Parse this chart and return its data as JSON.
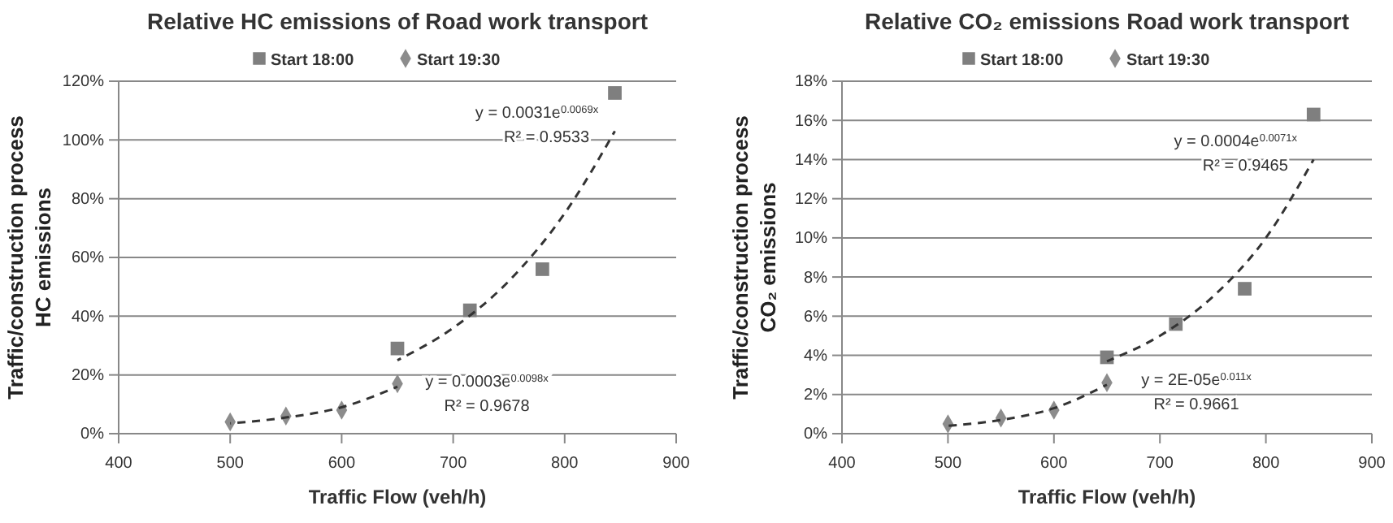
{
  "chart_data": [
    {
      "type": "scatter",
      "title": "Relative HC emissions of Road work transport",
      "xlabel": "Traffic Flow (veh/h)",
      "ylabel": "Traffic/construction  process\nHC emissions",
      "xlim": [
        400,
        900
      ],
      "xticks": [
        400,
        500,
        600,
        700,
        800,
        900
      ],
      "ylim": [
        0,
        120
      ],
      "yticks": [
        {
          "value": 0,
          "label": "0%"
        },
        {
          "value": 20,
          "label": "20%"
        },
        {
          "value": 40,
          "label": "40%"
        },
        {
          "value": 60,
          "label": "60%"
        },
        {
          "value": 80,
          "label": "80%"
        },
        {
          "value": 100,
          "label": "100%"
        },
        {
          "value": 120,
          "label": "120%"
        }
      ],
      "grid": "y",
      "legend": "top",
      "series": [
        {
          "name": "Start 18:00",
          "color": "#7f7f7f",
          "marker": "square",
          "x": [
            650,
            715,
            780,
            845
          ],
          "values": [
            29,
            42,
            56,
            116
          ]
        },
        {
          "name": "Start 19:30",
          "color": "#8c8c8c",
          "marker": "diamond",
          "x": [
            500,
            550,
            600,
            650
          ],
          "values": [
            4,
            6,
            8,
            17
          ]
        },
        {
          "type": "line",
          "color": "#333333",
          "line_style": "dashed",
          "marker": "none",
          "x": [
            650,
            700,
            750,
            800,
            845
          ],
          "values": [
            25,
            36,
            52,
            75,
            103
          ]
        },
        {
          "type": "line",
          "color": "#333333",
          "line_style": "dashed",
          "marker": "none",
          "x": [
            500,
            550,
            600,
            650
          ],
          "values": [
            3.5,
            5.5,
            9,
            16
          ]
        }
      ],
      "annotations": [
        "y = 0.0031e$^{0.0069x}$",
        "R² = 0.9533",
        "y = 0.0003e$^{0.0098x}$",
        "R² = 0.9678"
      ]
    },
    {
      "type": "scatter",
      "title": "Relative CO₂ emissions Road work transport",
      "xlabel": "Traffic Flow (veh/h)",
      "ylabel": "Traffic/construction  process\nCO₂ emissions",
      "xlim": [
        400,
        900
      ],
      "xticks": [
        400,
        500,
        600,
        700,
        800,
        900
      ],
      "ylim": [
        0,
        18
      ],
      "yticks": [
        {
          "value": 0,
          "label": "0%"
        },
        {
          "value": 2,
          "label": "2%"
        },
        {
          "value": 4,
          "label": "4%"
        },
        {
          "value": 6,
          "label": "6%"
        },
        {
          "value": 8,
          "label": "8%"
        },
        {
          "value": 10,
          "label": "10%"
        },
        {
          "value": 12,
          "label": "12%"
        },
        {
          "value": 14,
          "label": "14%"
        },
        {
          "value": 16,
          "label": "16%"
        },
        {
          "value": 18,
          "label": "18%"
        }
      ],
      "grid": "y",
      "legend": "top",
      "series": [
        {
          "name": "Start 18:00",
          "color": "#7f7f7f",
          "marker": "square",
          "x": [
            650,
            715,
            780,
            845
          ],
          "values": [
            3.9,
            5.6,
            7.4,
            16.3
          ]
        },
        {
          "name": "Start 19:30",
          "color": "#8c8c8c",
          "marker": "diamond",
          "x": [
            500,
            550,
            600,
            650
          ],
          "values": [
            0.5,
            0.8,
            1.2,
            2.6
          ]
        },
        {
          "type": "line",
          "color": "#333333",
          "line_style": "dashed",
          "marker": "none",
          "x": [
            650,
            700,
            750,
            800,
            845
          ],
          "values": [
            3.7,
            5,
            7,
            10,
            14
          ]
        },
        {
          "type": "line",
          "color": "#333333",
          "line_style": "dashed",
          "marker": "none",
          "x": [
            500,
            550,
            600,
            650
          ],
          "values": [
            0.4,
            0.7,
            1.3,
            2.5
          ]
        }
      ],
      "annotations": [
        "y = 0.0004e$^{0.0071x}$",
        "R² = 0.9465",
        "y = 2E-05e$^{0.011x}$",
        "R² = 0.9661"
      ]
    }
  ]
}
